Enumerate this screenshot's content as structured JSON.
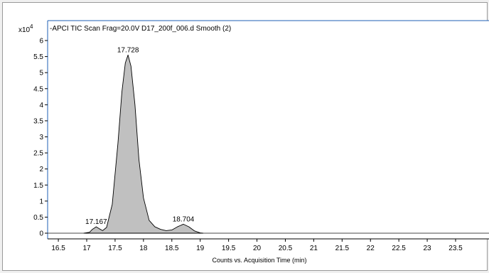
{
  "chart_data": {
    "type": "area",
    "title": "-APCI TIC Scan Frag=20.0V D17_200f_006.d  Smooth (2)",
    "xlabel": "Counts vs. Acquisition Time (min)",
    "ylabel": "",
    "y_multiplier_label": "x10",
    "y_multiplier_exponent": "4",
    "xlim": [
      16.3,
      24.0
    ],
    "ylim": [
      -0.1,
      6.1
    ],
    "x_ticks": [
      16.5,
      17,
      17.5,
      18,
      18.5,
      19,
      19.5,
      20,
      20.5,
      21,
      21.5,
      22,
      22.5,
      23,
      23.5
    ],
    "x_tick_labels": [
      "16.5",
      "17",
      "17.5",
      "18",
      "18.5",
      "19",
      "19.5",
      "20",
      "20.5",
      "21",
      "21.5",
      "22",
      "22.5",
      "23",
      "23.5"
    ],
    "y_ticks": [
      0,
      0.5,
      1,
      1.5,
      2,
      2.5,
      3,
      3.5,
      4,
      4.5,
      5,
      5.5,
      6
    ],
    "y_tick_labels": [
      "0",
      "0.5",
      "1",
      "1.5",
      "2",
      "2.5",
      "3",
      "3.5",
      "4",
      "4.5",
      "5",
      "5.5",
      "6"
    ],
    "series": [
      {
        "x": [
          16.95,
          17.05,
          17.1,
          17.167,
          17.22,
          17.28,
          17.35,
          17.45,
          17.55,
          17.62,
          17.68,
          17.728,
          17.78,
          17.85,
          17.92,
          18.0,
          18.1,
          18.2,
          18.3,
          18.4,
          18.5,
          18.6,
          18.704,
          18.8,
          18.9,
          19.0,
          19.05
        ],
        "y": [
          0.0,
          0.03,
          0.12,
          0.2,
          0.14,
          0.08,
          0.18,
          0.9,
          2.8,
          4.4,
          5.3,
          5.55,
          5.2,
          4.0,
          2.3,
          1.1,
          0.4,
          0.2,
          0.12,
          0.08,
          0.1,
          0.2,
          0.28,
          0.2,
          0.07,
          0.01,
          0.0
        ],
        "color": "#c0c0c0"
      }
    ],
    "peak_labels": [
      {
        "x": 17.167,
        "y": 0.2,
        "label": "17.167"
      },
      {
        "x": 17.728,
        "y": 5.55,
        "label": "17.728"
      },
      {
        "x": 18.704,
        "y": 0.28,
        "label": "18.704"
      }
    ],
    "baseline": 0,
    "colors": {
      "axis": "#000000",
      "frame_blue": "#1f5fb4",
      "fill": "#c0c0c0",
      "baseline": "#4a4a4a"
    }
  }
}
